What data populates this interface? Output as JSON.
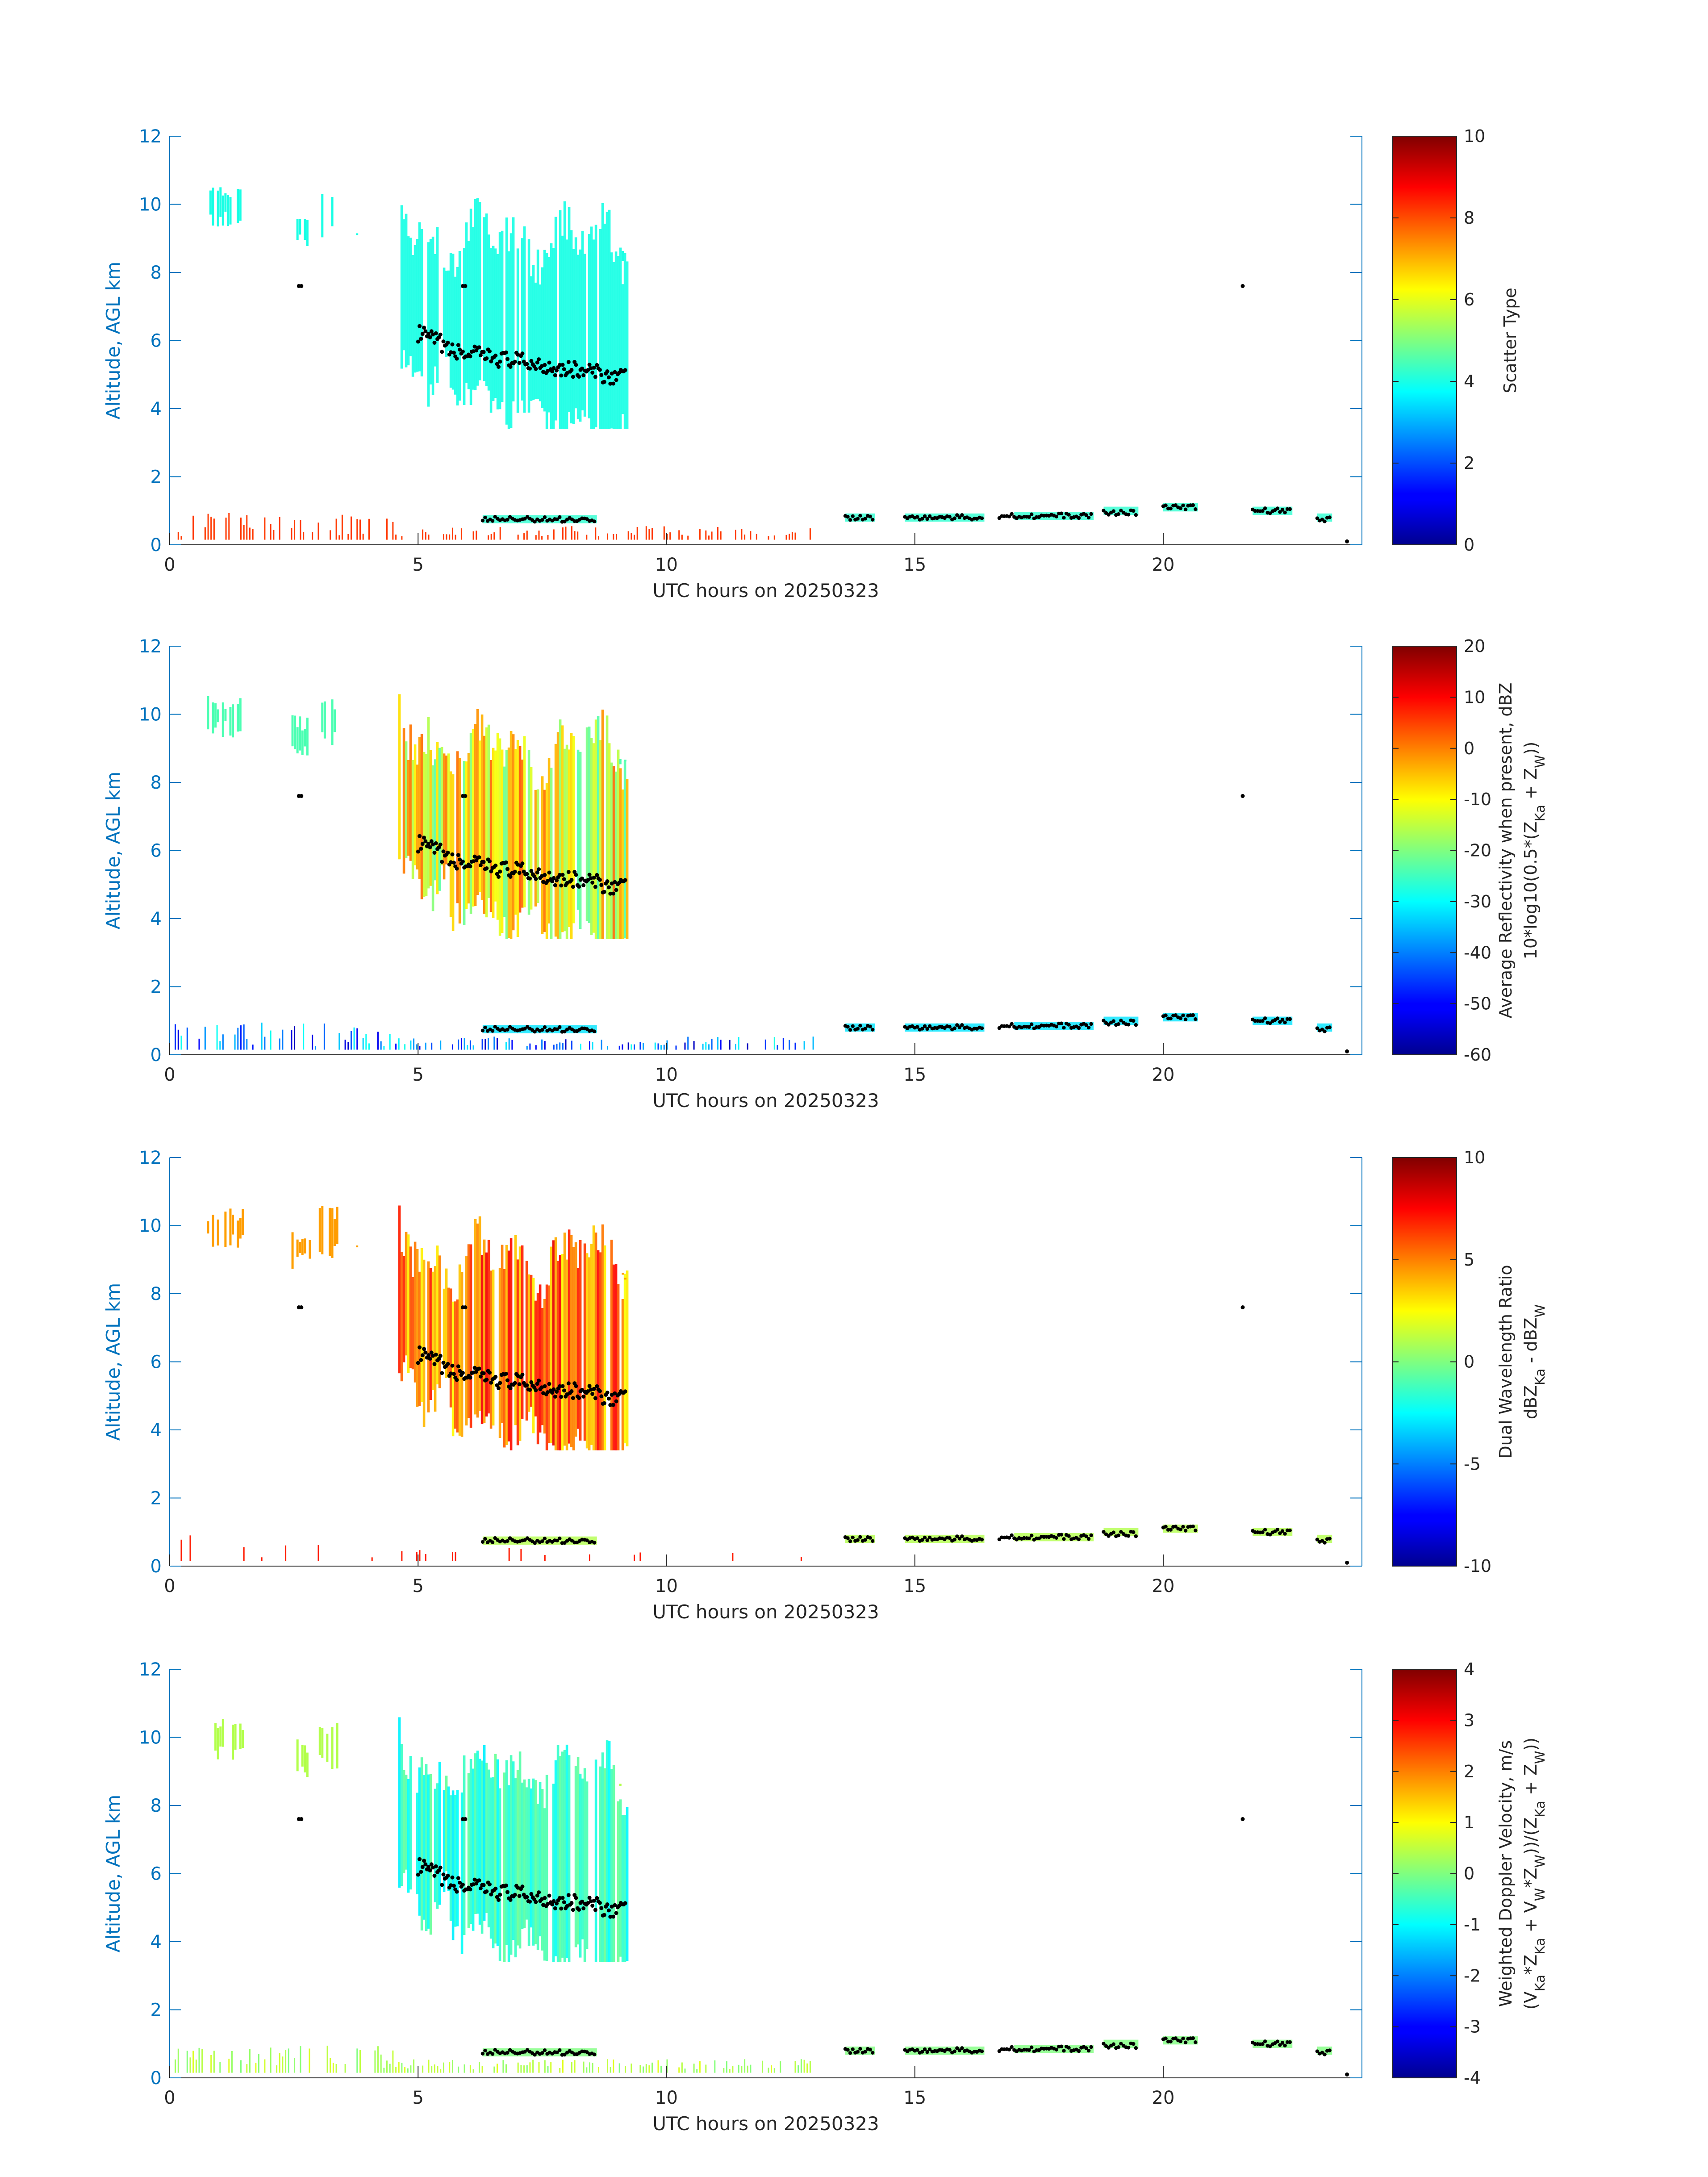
{
  "chart_data": [
    {
      "type": "heatmap",
      "title": "",
      "xlabel": "UTC hours on 20250323",
      "ylabel": "Altitude, AGL km",
      "colorbar_label": [
        "Scatter Type"
      ],
      "xlim": [
        0,
        24
      ],
      "ylim": [
        0,
        12
      ],
      "clim": [
        0,
        10
      ],
      "colormap": "jet",
      "x_ticks": [
        "0",
        "5",
        "10",
        "15",
        "20"
      ],
      "y_ticks": [
        "0",
        "2",
        "4",
        "6",
        "8",
        "10",
        "12"
      ],
      "c_ticks": [
        "0",
        "2",
        "4",
        "6",
        "8",
        "10"
      ],
      "c_tick_values": [
        0,
        2,
        4,
        6,
        8,
        10
      ]
    },
    {
      "type": "heatmap",
      "title": "",
      "xlabel": "UTC hours on 20250323",
      "ylabel": "Altitude, AGL km",
      "colorbar_label": [
        "Average Reflectivity when present, dBZ",
        "10*log10(0.5*(Z_Ka + Z_W))"
      ],
      "xlim": [
        0,
        24
      ],
      "ylim": [
        0,
        12
      ],
      "clim": [
        -60,
        20
      ],
      "colormap": "jet",
      "x_ticks": [
        "0",
        "5",
        "10",
        "15",
        "20"
      ],
      "y_ticks": [
        "0",
        "2",
        "4",
        "6",
        "8",
        "10",
        "12"
      ],
      "c_ticks": [
        "-60",
        "-50",
        "-40",
        "-30",
        "-20",
        "-10",
        "0",
        "10",
        "20"
      ],
      "c_tick_values": [
        -60,
        -50,
        -40,
        -30,
        -20,
        -10,
        0,
        10,
        20
      ]
    },
    {
      "type": "heatmap",
      "title": "",
      "xlabel": "UTC hours on 20250323",
      "ylabel": "Altitude, AGL km",
      "colorbar_label": [
        "Dual Wavelength Ratio",
        "dBZ_Ka - dBZ_W"
      ],
      "xlim": [
        0,
        24
      ],
      "ylim": [
        0,
        12
      ],
      "clim": [
        -10,
        10
      ],
      "colormap": "jet",
      "x_ticks": [
        "0",
        "5",
        "10",
        "15",
        "20"
      ],
      "y_ticks": [
        "0",
        "2",
        "4",
        "6",
        "8",
        "10",
        "12"
      ],
      "c_ticks": [
        "-10",
        "-5",
        "0",
        "5",
        "10"
      ],
      "c_tick_values": [
        -10,
        -5,
        0,
        5,
        10
      ]
    },
    {
      "type": "heatmap",
      "title": "",
      "xlabel": "UTC hours on 20250323",
      "ylabel": "Altitude, AGL km",
      "colorbar_label": [
        "Weighted Doppler Velocity, m/s",
        "(V_Ka*Z_Ka + V_W*Z_W))/(Z_Ka + Z_W))"
      ],
      "xlim": [
        0,
        24
      ],
      "ylim": [
        0,
        12
      ],
      "clim": [
        -4,
        4
      ],
      "colormap": "jet",
      "x_ticks": [
        "0",
        "5",
        "10",
        "15",
        "20"
      ],
      "y_ticks": [
        "0",
        "2",
        "4",
        "6",
        "8",
        "10",
        "12"
      ],
      "c_ticks": [
        "-4",
        "-3",
        "-2",
        "-1",
        "0",
        "1",
        "2",
        "3",
        "4"
      ],
      "c_tick_values": [
        -4,
        -3,
        -2,
        -1,
        0,
        1,
        2,
        3,
        4
      ]
    }
  ],
  "colors": {
    "axis": "#0072BD",
    "text": "#262626",
    "markers": "#000000"
  }
}
